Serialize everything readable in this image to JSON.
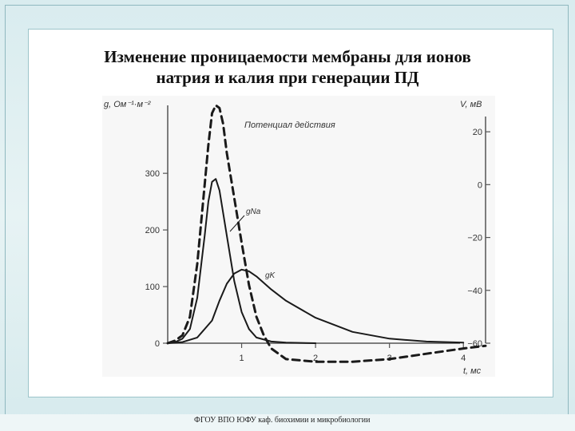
{
  "slide": {
    "title_line1": "Изменение проницаемости мембраны для ионов",
    "title_line2": "натрия и калия при генерации ПД",
    "footer": "ФГОУ ВПО ЮФУ каф. биохимии и микробиологии"
  },
  "chart_data": {
    "type": "line",
    "left_axis": {
      "label": "g, Ом⁻¹·м⁻²",
      "ticks": [
        0,
        100,
        200,
        300
      ],
      "range": [
        0,
        420
      ]
    },
    "right_axis": {
      "label": "V, мВ",
      "ticks": [
        "20",
        "0",
        "−20",
        "−40",
        "−60"
      ],
      "tick_values": [
        20,
        0,
        -20,
        -40,
        -60
      ],
      "range": [
        -60,
        30
      ]
    },
    "x_axis": {
      "label": "t, мс",
      "ticks": [
        1,
        2,
        3,
        4
      ],
      "range": [
        0,
        4.3
      ]
    },
    "series": [
      {
        "name": "Потенциал действия",
        "axis": "right",
        "style": "dashed",
        "x": [
          0,
          0.1,
          0.2,
          0.3,
          0.4,
          0.5,
          0.55,
          0.6,
          0.65,
          0.7,
          0.75,
          0.8,
          0.9,
          1.0,
          1.1,
          1.2,
          1.3,
          1.4,
          1.6,
          2.0,
          2.5,
          3.0,
          3.5,
          4.0,
          4.3
        ],
        "y": [
          -60,
          -59,
          -57,
          -50,
          -30,
          0,
          15,
          27,
          30,
          29,
          23,
          12,
          -5,
          -22,
          -38,
          -50,
          -57,
          -62,
          -66,
          -67,
          -67,
          -66,
          -64,
          -62,
          -61
        ]
      },
      {
        "name": "gNa",
        "axis": "left",
        "style": "solid",
        "x": [
          0,
          0.1,
          0.2,
          0.3,
          0.4,
          0.5,
          0.55,
          0.6,
          0.65,
          0.7,
          0.8,
          0.9,
          1.0,
          1.1,
          1.2,
          1.4,
          1.6,
          2.0
        ],
        "y": [
          0,
          2,
          8,
          25,
          80,
          190,
          250,
          285,
          290,
          270,
          190,
          110,
          55,
          25,
          10,
          3,
          1,
          0
        ]
      },
      {
        "name": "gK",
        "axis": "left",
        "style": "solid",
        "x": [
          0,
          0.2,
          0.4,
          0.6,
          0.7,
          0.8,
          0.9,
          1.0,
          1.1,
          1.2,
          1.4,
          1.6,
          2.0,
          2.5,
          3.0,
          3.5,
          4.0
        ],
        "y": [
          0,
          2,
          10,
          40,
          75,
          105,
          123,
          130,
          127,
          118,
          95,
          75,
          45,
          20,
          8,
          3,
          1
        ]
      }
    ]
  }
}
